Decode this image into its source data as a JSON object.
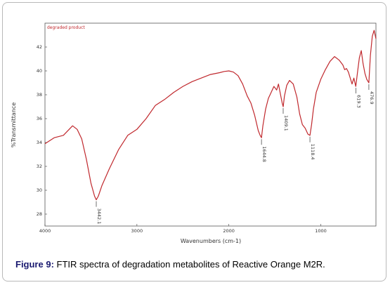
{
  "caption": {
    "figure_label": "Figure 9:",
    "text": " FTIR spectra of degradation metabolites of Reactive Orange M2R."
  },
  "chart_data": {
    "type": "line",
    "title": "degraded product",
    "xlabel": "Wavenumbers (cm-1)",
    "ylabel": "%Transmittance",
    "xlim": [
      4000,
      400
    ],
    "ylim": [
      27,
      44
    ],
    "x_ticks": [
      4000,
      3000,
      2000,
      1000
    ],
    "x_tick_labels": [
      "4000",
      "3000",
      "2000",
      "1000"
    ],
    "y_ticks": [
      28,
      30,
      32,
      34,
      36,
      38,
      40,
      42
    ],
    "y_tick_labels": [
      "28",
      "30",
      "32",
      "34",
      "36",
      "38",
      "40",
      "42"
    ],
    "grid": false,
    "legend": "none",
    "series": [
      {
        "color": "#c0282d",
        "x": [
          4000,
          3900,
          3800,
          3700,
          3650,
          3600,
          3550,
          3500,
          3460,
          3442,
          3420,
          3380,
          3300,
          3200,
          3100,
          3000,
          2900,
          2800,
          2700,
          2600,
          2500,
          2400,
          2300,
          2200,
          2100,
          2050,
          2000,
          1950,
          1900,
          1850,
          1800,
          1760,
          1720,
          1680,
          1660,
          1645,
          1630,
          1600,
          1570,
          1540,
          1510,
          1480,
          1460,
          1440,
          1420,
          1409,
          1395,
          1370,
          1340,
          1300,
          1260,
          1230,
          1200,
          1170,
          1140,
          1118,
          1100,
          1080,
          1050,
          1000,
          950,
          900,
          850,
          800,
          760,
          740,
          720,
          700,
          680,
          660,
          640,
          619,
          600,
          580,
          560,
          540,
          520,
          500,
          477,
          460,
          440,
          420,
          400
        ],
        "y": [
          33.9,
          34.4,
          34.6,
          35.4,
          35.1,
          34.3,
          32.6,
          30.6,
          29.5,
          29.2,
          29.5,
          30.4,
          31.8,
          33.4,
          34.6,
          35.1,
          36.0,
          37.1,
          37.6,
          38.2,
          38.7,
          39.1,
          39.4,
          39.7,
          39.85,
          39.95,
          40.0,
          39.9,
          39.6,
          38.9,
          37.9,
          37.3,
          36.3,
          35.0,
          34.6,
          34.4,
          35.4,
          36.8,
          37.7,
          38.2,
          38.7,
          38.4,
          38.9,
          38.1,
          37.3,
          37.0,
          37.9,
          38.8,
          39.2,
          38.9,
          37.8,
          36.4,
          35.5,
          35.2,
          34.7,
          34.6,
          35.5,
          36.8,
          38.2,
          39.3,
          40.1,
          40.8,
          41.2,
          40.9,
          40.5,
          40.1,
          40.2,
          39.9,
          39.4,
          38.9,
          39.4,
          38.7,
          39.9,
          41.1,
          41.7,
          40.6,
          39.8,
          39.3,
          39.0,
          41.3,
          42.9,
          43.4,
          42.7
        ]
      }
    ],
    "peaks": [
      {
        "x": 3442,
        "y": 29.2,
        "label": "3442.1"
      },
      {
        "x": 1645,
        "y": 34.4,
        "label": "1644.8"
      },
      {
        "x": 1409,
        "y": 37.0,
        "label": "1409.1"
      },
      {
        "x": 1118,
        "y": 34.6,
        "label": "1118.4"
      },
      {
        "x": 619,
        "y": 38.7,
        "label": "619.3"
      },
      {
        "x": 477,
        "y": 39.0,
        "label": "476.9"
      }
    ]
  }
}
